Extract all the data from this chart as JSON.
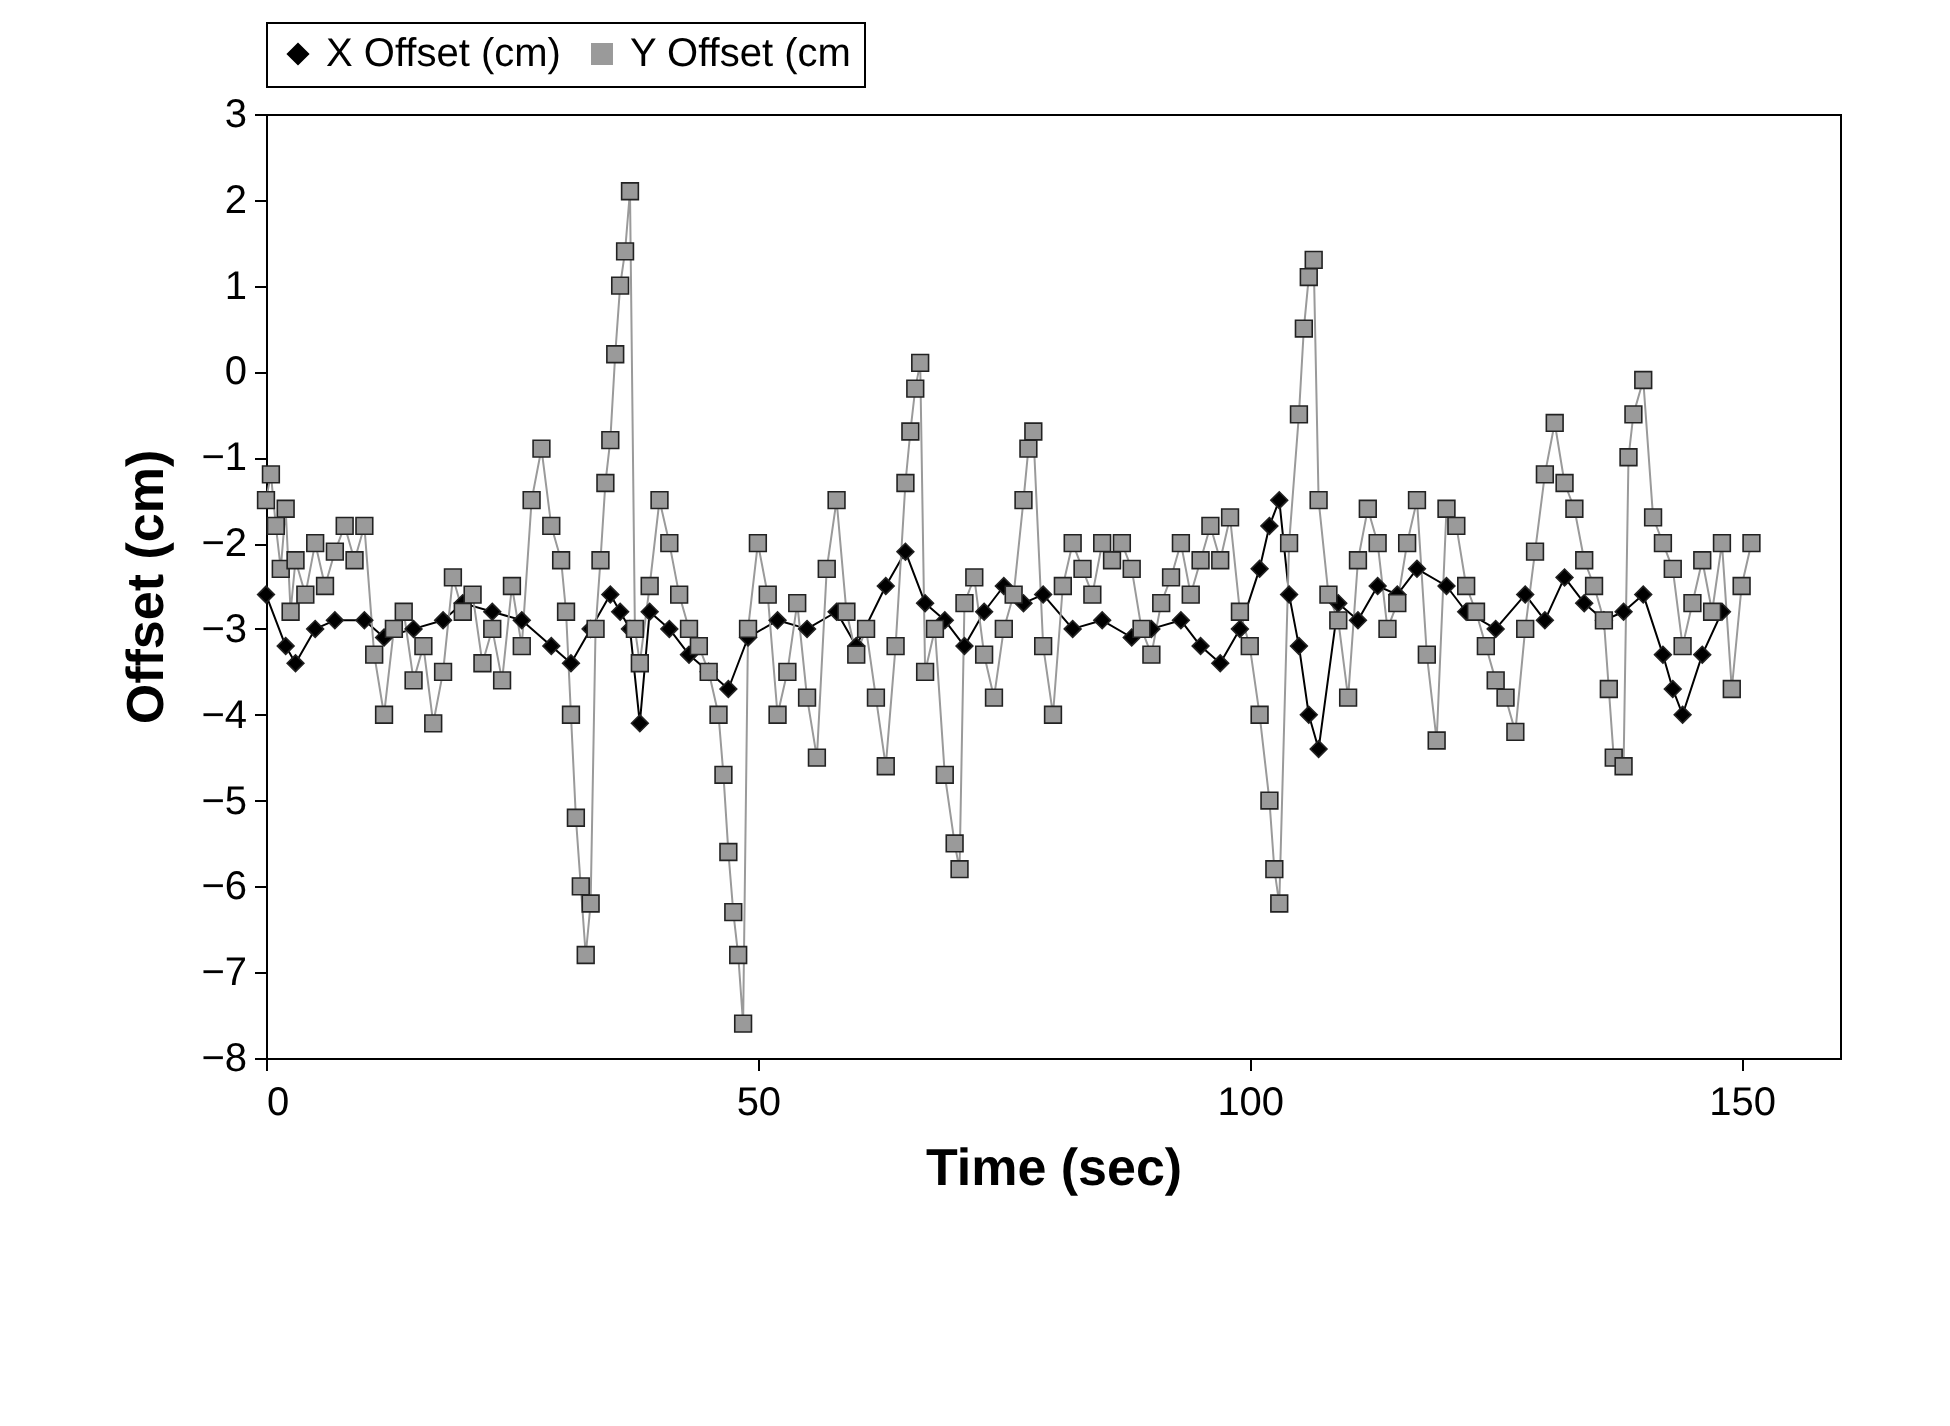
{
  "chart_data": {
    "type": "line",
    "xlabel": "Time (sec)",
    "ylabel": "Offset (cm)",
    "xlim": [
      0,
      160
    ],
    "xticks": [
      0,
      50,
      100,
      150
    ],
    "ylim": [
      -8,
      3
    ],
    "yticks": [
      -8,
      -7,
      -6,
      -5,
      -4,
      -3,
      -2,
      -1,
      0,
      1,
      2,
      3
    ],
    "grid": false,
    "legend": "top",
    "line_style": "solid",
    "series": [
      {
        "name": "X Offset (cm)",
        "color": "#000000",
        "marker": "diamond",
        "x": [
          0,
          2,
          3,
          5,
          7,
          10,
          12,
          15,
          18,
          20,
          23,
          26,
          29,
          31,
          33,
          35,
          36,
          37,
          38,
          39,
          41,
          43,
          45,
          47,
          49,
          52,
          55,
          58,
          60,
          63,
          65,
          67,
          69,
          71,
          73,
          75,
          77,
          79,
          82,
          85,
          88,
          90,
          93,
          95,
          97,
          99,
          101,
          102,
          103,
          104,
          105,
          106,
          107,
          109,
          111,
          113,
          115,
          117,
          120,
          122,
          125,
          128,
          130,
          132,
          134,
          136,
          138,
          140,
          142,
          143,
          144,
          146,
          148
        ],
        "values": [
          -2.6,
          -3.2,
          -3.4,
          -3.0,
          -2.9,
          -2.9,
          -3.1,
          -3.0,
          -2.9,
          -2.7,
          -2.8,
          -2.9,
          -3.2,
          -3.4,
          -3.0,
          -2.6,
          -2.8,
          -3.0,
          -4.1,
          -2.8,
          -3.0,
          -3.3,
          -3.5,
          -3.7,
          -3.1,
          -2.9,
          -3.0,
          -2.8,
          -3.2,
          -2.5,
          -2.1,
          -2.7,
          -2.9,
          -3.2,
          -2.8,
          -2.5,
          -2.7,
          -2.6,
          -3.0,
          -2.9,
          -3.1,
          -3.0,
          -2.9,
          -3.2,
          -3.4,
          -3.0,
          -2.3,
          -1.8,
          -1.5,
          -2.6,
          -3.2,
          -4.0,
          -4.4,
          -2.7,
          -2.9,
          -2.5,
          -2.6,
          -2.3,
          -2.5,
          -2.8,
          -3.0,
          -2.6,
          -2.9,
          -2.4,
          -2.7,
          -2.9,
          -2.8,
          -2.6,
          -3.3,
          -3.7,
          -4.0,
          -3.3,
          -2.8
        ]
      },
      {
        "name": "Y Offset (cm",
        "color": "#9a9a9a",
        "marker": "square",
        "x": [
          0,
          0.5,
          1,
          1.5,
          2,
          2.5,
          3,
          4,
          5,
          6,
          7,
          8,
          9,
          10,
          11,
          12,
          13,
          14,
          15,
          16,
          17,
          18,
          19,
          20,
          21,
          22,
          23,
          24,
          25,
          26,
          27,
          28,
          29,
          30,
          30.5,
          31,
          31.5,
          32,
          32.5,
          33,
          33.5,
          34,
          34.5,
          35,
          35.5,
          36,
          36.5,
          37,
          37.5,
          38,
          39,
          40,
          41,
          42,
          43,
          44,
          45,
          46,
          46.5,
          47,
          47.5,
          48,
          48.5,
          49,
          50,
          51,
          52,
          53,
          54,
          55,
          56,
          57,
          58,
          59,
          60,
          61,
          62,
          63,
          64,
          65,
          65.5,
          66,
          66.5,
          67,
          68,
          69,
          70,
          70.5,
          71,
          72,
          73,
          74,
          75,
          76,
          77,
          77.5,
          78,
          79,
          80,
          81,
          82,
          83,
          84,
          85,
          86,
          87,
          88,
          89,
          90,
          91,
          92,
          93,
          94,
          95,
          96,
          97,
          98,
          99,
          100,
          101,
          102,
          102.5,
          103,
          104,
          105,
          105.5,
          106,
          106.5,
          107,
          108,
          109,
          110,
          111,
          112,
          113,
          114,
          115,
          116,
          117,
          118,
          119,
          120,
          121,
          122,
          123,
          124,
          125,
          126,
          127,
          128,
          129,
          130,
          131,
          132,
          133,
          134,
          135,
          136,
          136.5,
          137,
          138,
          138.5,
          139,
          140,
          141,
          142,
          143,
          144,
          145,
          146,
          147,
          148,
          149,
          150,
          151
        ],
        "values": [
          -1.5,
          -1.2,
          -1.8,
          -2.3,
          -1.6,
          -2.8,
          -2.2,
          -2.6,
          -2.0,
          -2.5,
          -2.1,
          -1.8,
          -2.2,
          -1.8,
          -3.3,
          -4.0,
          -3.0,
          -2.8,
          -3.6,
          -3.2,
          -4.1,
          -3.5,
          -2.4,
          -2.8,
          -2.6,
          -3.4,
          -3.0,
          -3.6,
          -2.5,
          -3.2,
          -1.5,
          -0.9,
          -1.8,
          -2.2,
          -2.8,
          -4.0,
          -5.2,
          -6.0,
          -6.8,
          -6.2,
          -3.0,
          -2.2,
          -1.3,
          -0.8,
          0.2,
          1.0,
          1.4,
          2.1,
          -3.0,
          -3.4,
          -2.5,
          -1.5,
          -2.0,
          -2.6,
          -3.0,
          -3.2,
          -3.5,
          -4.0,
          -4.7,
          -5.6,
          -6.3,
          -6.8,
          -7.6,
          -3.0,
          -2.0,
          -2.6,
          -4.0,
          -3.5,
          -2.7,
          -3.8,
          -4.5,
          -2.3,
          -1.5,
          -2.8,
          -3.3,
          -3.0,
          -3.8,
          -4.6,
          -3.2,
          -1.3,
          -0.7,
          -0.2,
          0.1,
          -3.5,
          -3.0,
          -4.7,
          -5.5,
          -5.8,
          -2.7,
          -2.4,
          -3.3,
          -3.8,
          -3.0,
          -2.6,
          -1.5,
          -0.9,
          -0.7,
          -3.2,
          -4.0,
          -2.5,
          -2.0,
          -2.3,
          -2.6,
          -2.0,
          -2.2,
          -2.0,
          -2.3,
          -3.0,
          -3.3,
          -2.7,
          -2.4,
          -2.0,
          -2.6,
          -2.2,
          -1.8,
          -2.2,
          -1.7,
          -2.8,
          -3.2,
          -4.0,
          -5.0,
          -5.8,
          -6.2,
          -2.0,
          -0.5,
          0.5,
          1.1,
          1.3,
          -1.5,
          -2.6,
          -2.9,
          -3.8,
          -2.2,
          -1.6,
          -2.0,
          -3.0,
          -2.7,
          -2.0,
          -1.5,
          -3.3,
          -4.3,
          -1.6,
          -1.8,
          -2.5,
          -2.8,
          -3.2,
          -3.6,
          -3.8,
          -4.2,
          -3.0,
          -2.1,
          -1.2,
          -0.6,
          -1.3,
          -1.6,
          -2.2,
          -2.5,
          -2.9,
          -3.7,
          -4.5,
          -4.6,
          -1.0,
          -0.5,
          -0.1,
          -1.7,
          -2.0,
          -2.3,
          -3.2,
          -2.7,
          -2.2,
          -2.8,
          -2.0,
          -3.7,
          -2.5,
          -2.0
        ]
      }
    ]
  }
}
